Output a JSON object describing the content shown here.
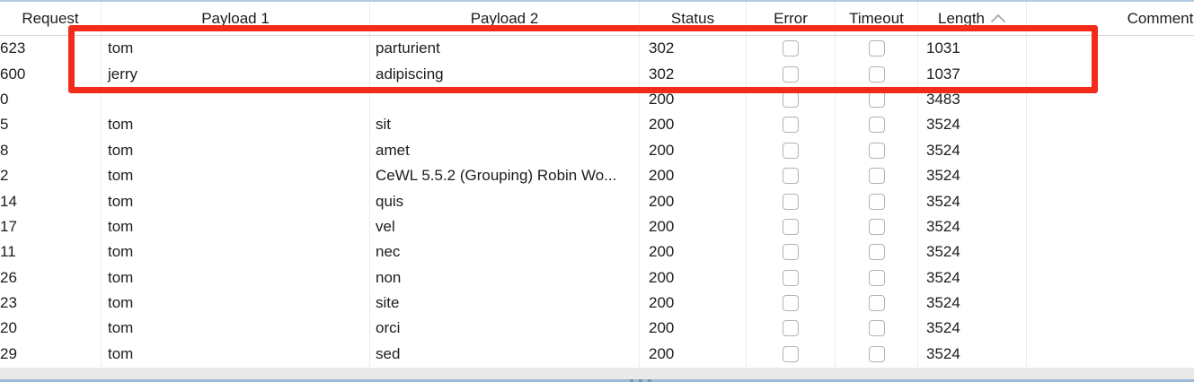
{
  "colors": {
    "annotation_red": "#f42a1a",
    "top_border_blue": "#b4cbe6",
    "splitter_blue": "#9db9d8",
    "grid_line": "#ececec",
    "scroll_track": "#e9e9e9",
    "checkbox_border": "#b3b3b3",
    "text": "#1c1c1c"
  },
  "table": {
    "columns": [
      {
        "key": "request",
        "label": "Request",
        "type": "text"
      },
      {
        "key": "payload1",
        "label": "Payload 1",
        "type": "text"
      },
      {
        "key": "payload2",
        "label": "Payload 2",
        "type": "text"
      },
      {
        "key": "status",
        "label": "Status",
        "type": "text"
      },
      {
        "key": "error",
        "label": "Error",
        "type": "checkbox"
      },
      {
        "key": "timeout",
        "label": "Timeout",
        "type": "checkbox"
      },
      {
        "key": "length",
        "label": "Length",
        "type": "text"
      },
      {
        "key": "comment",
        "label": "Comment",
        "type": "text"
      }
    ],
    "sort": {
      "column": "length",
      "direction": "ascending"
    },
    "rows": [
      {
        "request": "623",
        "payload1": "tom",
        "payload2": "parturient",
        "status": "302",
        "error": false,
        "timeout": false,
        "length": "1031",
        "comment": ""
      },
      {
        "request": "600",
        "payload1": "jerry",
        "payload2": "adipiscing",
        "status": "302",
        "error": false,
        "timeout": false,
        "length": "1037",
        "comment": ""
      },
      {
        "request": "0",
        "payload1": "",
        "payload2": "",
        "status": "200",
        "error": false,
        "timeout": false,
        "length": "3483",
        "comment": ""
      },
      {
        "request": "5",
        "payload1": "tom",
        "payload2": "sit",
        "status": "200",
        "error": false,
        "timeout": false,
        "length": "3524",
        "comment": ""
      },
      {
        "request": "8",
        "payload1": "tom",
        "payload2": "amet",
        "status": "200",
        "error": false,
        "timeout": false,
        "length": "3524",
        "comment": ""
      },
      {
        "request": "2",
        "payload1": "tom",
        "payload2": "CeWL 5.5.2 (Grouping) Robin Wo...",
        "status": "200",
        "error": false,
        "timeout": false,
        "length": "3524",
        "comment": ""
      },
      {
        "request": "14",
        "payload1": "tom",
        "payload2": "quis",
        "status": "200",
        "error": false,
        "timeout": false,
        "length": "3524",
        "comment": ""
      },
      {
        "request": "17",
        "payload1": "tom",
        "payload2": "vel",
        "status": "200",
        "error": false,
        "timeout": false,
        "length": "3524",
        "comment": ""
      },
      {
        "request": "11",
        "payload1": "tom",
        "payload2": "nec",
        "status": "200",
        "error": false,
        "timeout": false,
        "length": "3524",
        "comment": ""
      },
      {
        "request": "26",
        "payload1": "tom",
        "payload2": "non",
        "status": "200",
        "error": false,
        "timeout": false,
        "length": "3524",
        "comment": ""
      },
      {
        "request": "23",
        "payload1": "tom",
        "payload2": "site",
        "status": "200",
        "error": false,
        "timeout": false,
        "length": "3524",
        "comment": ""
      },
      {
        "request": "20",
        "payload1": "tom",
        "payload2": "orci",
        "status": "200",
        "error": false,
        "timeout": false,
        "length": "3524",
        "comment": ""
      },
      {
        "request": "29",
        "payload1": "tom",
        "payload2": "sed",
        "status": "200",
        "error": false,
        "timeout": false,
        "length": "3524",
        "comment": ""
      }
    ]
  },
  "annotation": {
    "shape": "rectangle",
    "color": "#f42a1a",
    "highlighted_row_indexes": [
      0,
      1
    ]
  }
}
